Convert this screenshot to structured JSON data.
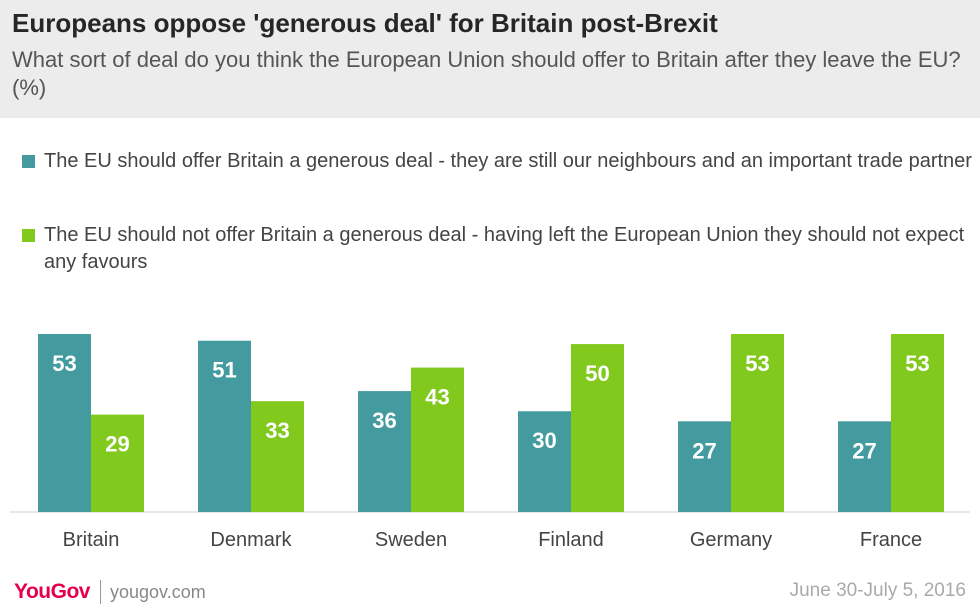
{
  "header": {
    "title": "Europeans oppose 'generous deal' for Britain post-Brexit",
    "subtitle": "What sort of deal do you think the European Union should offer to Britain after they leave the EU? (%)"
  },
  "legend": [
    {
      "label": "The EU should offer Britain a generous deal - they are still our neighbours and an important trade partner",
      "color": "#439b9f"
    },
    {
      "label": "The EU should not offer Britain a generous deal - having left the European Union they should not expect any favours",
      "color": "#82c91e"
    }
  ],
  "chart_data": {
    "type": "bar",
    "categories": [
      "Britain",
      "Denmark",
      "Sweden",
      "Finland",
      "Germany",
      "France"
    ],
    "series": [
      {
        "name": "The EU should offer Britain a generous deal - they are still our neighbours and an important trade partner",
        "values": [
          53,
          51,
          36,
          30,
          27,
          27
        ],
        "color": "#439b9f"
      },
      {
        "name": "The EU should not offer Britain a generous deal - having left the European Union they should not expect any favours",
        "values": [
          29,
          33,
          43,
          50,
          53,
          53
        ],
        "color": "#82c91e"
      }
    ],
    "ylim": [
      0,
      53
    ],
    "grid": false,
    "data_labels": true,
    "legend_position": "top"
  },
  "footer": {
    "brand": "YouGov",
    "url": "yougov.com",
    "date": "June 30-July 5, 2016"
  }
}
